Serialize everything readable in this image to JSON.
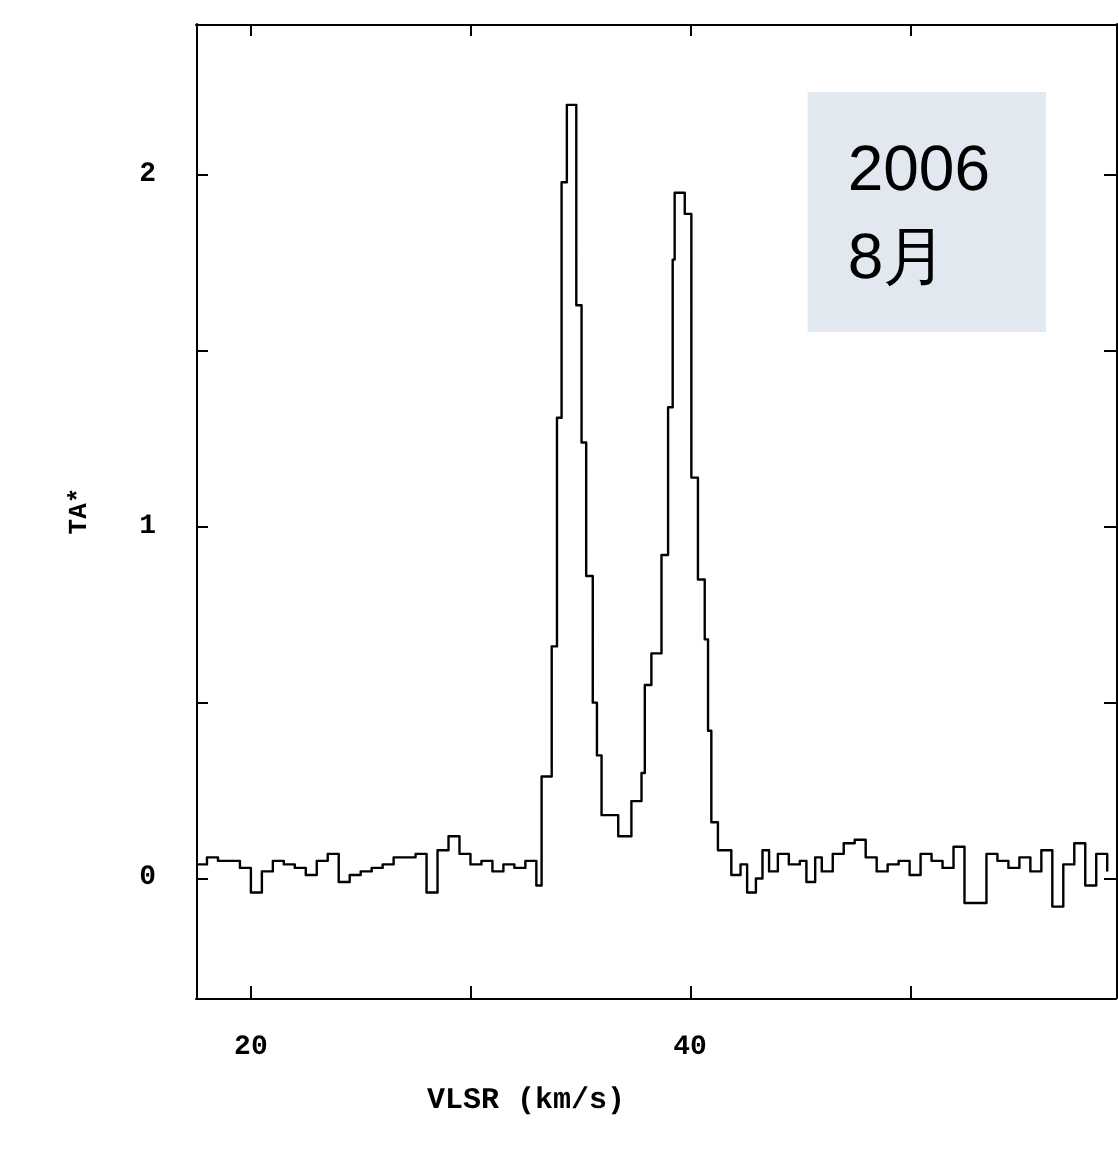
{
  "chart_data": {
    "type": "step",
    "xlabel": "VLSR (km/s)",
    "ylabel": "TA*",
    "annotations": [
      "2006\n8月"
    ],
    "xlim": [
      17.5,
      59.4
    ],
    "ylim": [
      -0.34,
      2.43
    ],
    "xticks": [
      20,
      {
        "value": 30,
        "label": null
      },
      40,
      {
        "value": 50,
        "label": null
      }
    ],
    "yticks": [
      0,
      {
        "value": 0.5,
        "label": null
      },
      1,
      {
        "value": 1.5,
        "label": null
      },
      2
    ],
    "grid": false,
    "marker": "none",
    "line_style": "solid",
    "series": [
      {
        "color": "#000000",
        "x": [
          17.5,
          18,
          18.5,
          19,
          19.5,
          20,
          20.5,
          21,
          21.5,
          22,
          22.5,
          23,
          23.5,
          24,
          24.5,
          25,
          25.5,
          26,
          26.5,
          27,
          27.5,
          28,
          28.5,
          29,
          29.5,
          30,
          30.5,
          31,
          31.5,
          32,
          32.5,
          33,
          33.24,
          33.7,
          33.94,
          34.15,
          34.39,
          34.82,
          35.06,
          35.27,
          35.57,
          35.76,
          35.97,
          36.73,
          37.33,
          37.79,
          37.94,
          38.24,
          38.7,
          39.0,
          39.21,
          39.3,
          39.76,
          40.06,
          40.36,
          40.67,
          40.82,
          40.97,
          41.27,
          41.88,
          42.3,
          42.6,
          43,
          43.3,
          43.6,
          44,
          44.5,
          45,
          45.3,
          45.7,
          46,
          46.5,
          47,
          47.5,
          48,
          48.5,
          49,
          49.5,
          50,
          50.5,
          51,
          51.5,
          52,
          52.5,
          53,
          53.5,
          54,
          54.5,
          55,
          55.5,
          56,
          56.5,
          57,
          57.5,
          58,
          58.5,
          59
        ],
        "values": [
          0.04,
          0.06,
          0.05,
          0.05,
          0.03,
          -0.04,
          0.02,
          0.05,
          0.04,
          0.03,
          0.01,
          0.05,
          0.07,
          -0.01,
          0.01,
          0.02,
          0.03,
          0.04,
          0.06,
          0.06,
          0.07,
          -0.04,
          0.08,
          0.12,
          0.07,
          0.04,
          0.05,
          0.02,
          0.04,
          0.03,
          0.05,
          -0.02,
          0.29,
          0.66,
          1.31,
          1.98,
          2.2,
          1.63,
          1.24,
          0.86,
          0.5,
          0.35,
          0.18,
          0.12,
          0.22,
          0.3,
          0.55,
          0.64,
          0.92,
          1.34,
          1.76,
          1.95,
          1.89,
          1.14,
          0.85,
          0.68,
          0.42,
          0.16,
          0.08,
          0.01,
          0.04,
          -0.04,
          0.0,
          0.08,
          0.02,
          0.07,
          0.04,
          0.05,
          -0.01,
          0.06,
          0.02,
          0.07,
          0.1,
          0.11,
          0.06,
          0.02,
          0.04,
          0.05,
          0.01,
          0.07,
          0.05,
          0.03,
          0.09,
          -0.07,
          -0.07,
          0.07,
          0.05,
          0.03,
          0.06,
          0.02,
          0.08,
          -0.08,
          0.04,
          0.1,
          -0.02,
          0.07,
          0.02
        ]
      }
    ]
  }
}
